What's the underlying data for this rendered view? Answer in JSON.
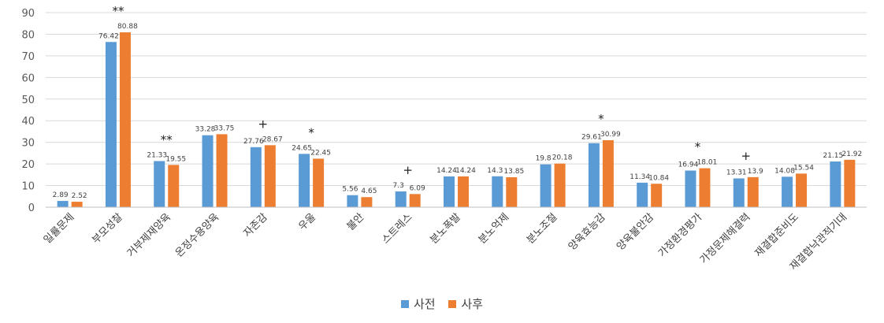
{
  "chart_data": {
    "type": "bar",
    "categories": [
      "일률문제",
      "부모성찰",
      "거부제재양육",
      "온정수용양육",
      "자존감",
      "우울",
      "불안",
      "스트레스",
      "분노폭발",
      "분노억제",
      "분노조절",
      "양육효능감",
      "양육불안감",
      "가정환경평가",
      "가정문제해결력",
      "재결합준비도",
      "재결합낙관적기대"
    ],
    "series": [
      {
        "name": "사전",
        "color": "#5B9BD5",
        "values": [
          2.89,
          76.42,
          21.33,
          33.28,
          27.76,
          24.65,
          5.56,
          7.3,
          14.24,
          14.3,
          19.8,
          29.61,
          11.34,
          16.94,
          13.31,
          14.08,
          21.15
        ]
      },
      {
        "name": "사후",
        "color": "#ED7D31",
        "values": [
          2.52,
          80.88,
          19.55,
          33.75,
          28.67,
          22.45,
          4.65,
          6.09,
          14.24,
          13.85,
          20.18,
          30.99,
          10.84,
          18.01,
          13.9,
          15.54,
          21.92
        ]
      }
    ],
    "value_labels": {
      "사전": [
        "2.89",
        "76.42",
        "21.33",
        "33.28",
        "27.76",
        "24.65",
        "5.56",
        "7.3",
        "14.24",
        "14.3",
        "19.8",
        "29.61",
        "11.34",
        "16.94",
        "13.31",
        "14.08",
        "21.15"
      ],
      "사후": [
        "2.52",
        "80.88",
        "19.55",
        "33.75",
        "28.67",
        "22.45",
        "4.65",
        "6.09",
        "14.24",
        "13.85",
        "20.18",
        "30.99",
        "10.84",
        "18.01",
        "13.9",
        "15.54",
        "21.92"
      ]
    },
    "significance": [
      "",
      "**",
      "**",
      "",
      "+",
      "*",
      "",
      "+",
      "",
      "",
      "",
      "*",
      "",
      "*",
      "+",
      "",
      ""
    ],
    "ylim": [
      0,
      90
    ],
    "yticks": [
      0,
      10,
      20,
      30,
      40,
      50,
      60,
      70,
      80,
      90
    ],
    "grid": true,
    "legend_position": "bottom",
    "title": "",
    "xlabel": "",
    "ylabel": ""
  }
}
